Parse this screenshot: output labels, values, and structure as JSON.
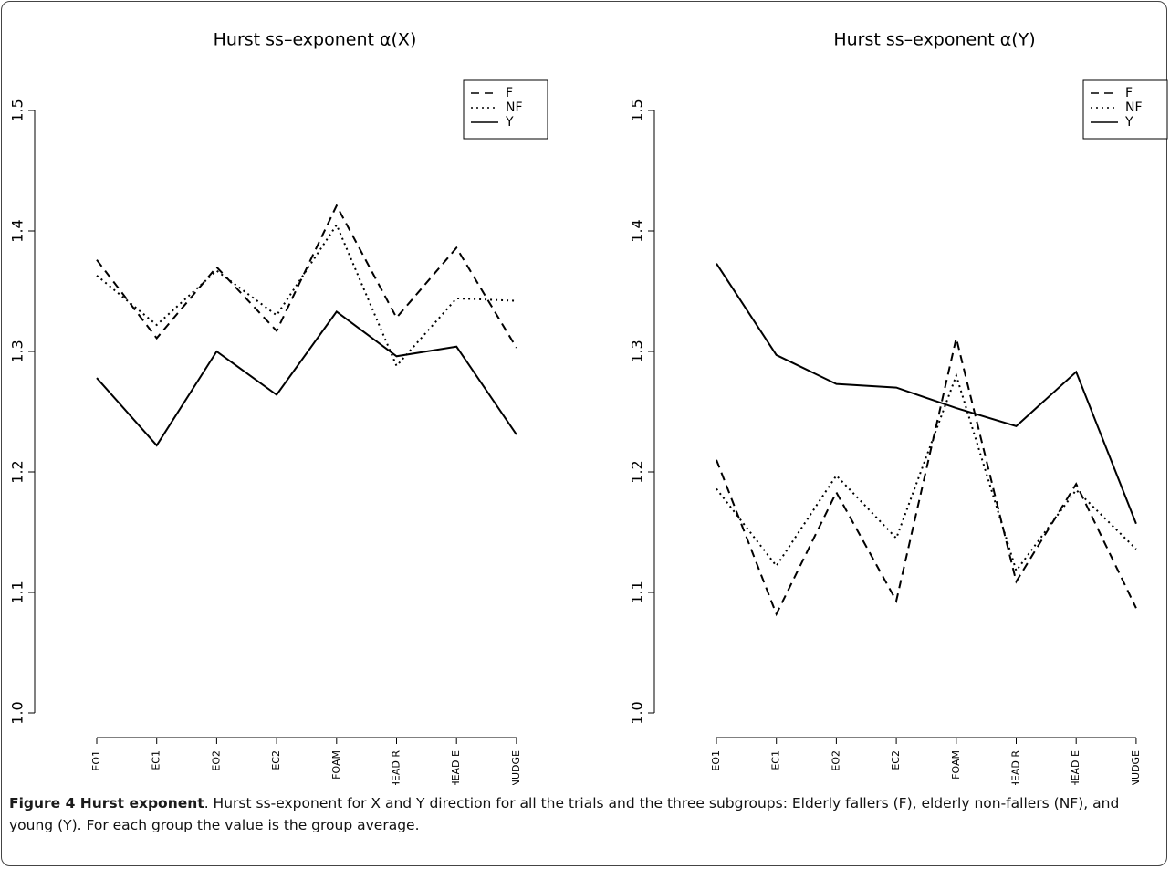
{
  "chart_data": [
    {
      "type": "line",
      "title": "Hurst ss–exponent α(X)",
      "categories": [
        "EO1",
        "EC1",
        "EO2",
        "EC2",
        "FOAM",
        "HEAD R",
        "HEAD E",
        "NUDGE"
      ],
      "series": [
        {
          "name": "F",
          "color": "#000000",
          "linestyle": "dashed",
          "values": [
            1.376,
            1.311,
            1.37,
            1.317,
            1.421,
            1.328,
            1.386,
            1.303
          ]
        },
        {
          "name": "NF",
          "color": "#000000",
          "linestyle": "dotted",
          "values": [
            1.363,
            1.322,
            1.367,
            1.33,
            1.405,
            1.288,
            1.344,
            1.342
          ]
        },
        {
          "name": "Y",
          "color": "#000000",
          "linestyle": "solid",
          "values": [
            1.278,
            1.222,
            1.3,
            1.264,
            1.333,
            1.296,
            1.304,
            1.231
          ]
        }
      ],
      "ylim": [
        1.0,
        1.5
      ],
      "yticks": [
        {
          "value": 1.0,
          "label": "1.0"
        },
        1.1,
        1.2,
        1.3,
        1.4,
        1.5
      ],
      "legend": "top-right"
    },
    {
      "type": "line",
      "title": "Hurst ss–exponent α(Y)",
      "categories": [
        "EO1",
        "EC1",
        "EO2",
        "EC2",
        "FOAM",
        "HEAD R",
        "HEAD E",
        "NUDGE"
      ],
      "series": [
        {
          "name": "F",
          "color": "#000000",
          "linestyle": "dashed",
          "values": [
            1.21,
            1.082,
            1.183,
            1.093,
            1.311,
            1.109,
            1.19,
            1.087
          ]
        },
        {
          "name": "NF",
          "color": "#000000",
          "linestyle": "dotted",
          "values": [
            1.186,
            1.122,
            1.197,
            1.145,
            1.28,
            1.118,
            1.185,
            1.136
          ]
        },
        {
          "name": "Y",
          "color": "#000000",
          "linestyle": "solid",
          "values": [
            1.373,
            1.297,
            1.273,
            1.27,
            1.253,
            1.238,
            1.283,
            1.157
          ]
        }
      ],
      "ylim": [
        1.0,
        1.5
      ],
      "yticks": [
        {
          "value": 1.0,
          "label": "1.0"
        },
        1.1,
        1.2,
        1.3,
        1.4,
        1.5
      ],
      "legend": "top-right"
    }
  ],
  "caption": {
    "label": "Figure 4 Hurst exponent",
    "text": ". Hurst ss-exponent for X and Y direction for all the trials and the three subgroups: Elderly fallers (F), elderly non-fallers (NF), and young (Y). For each group the value is the group average."
  }
}
